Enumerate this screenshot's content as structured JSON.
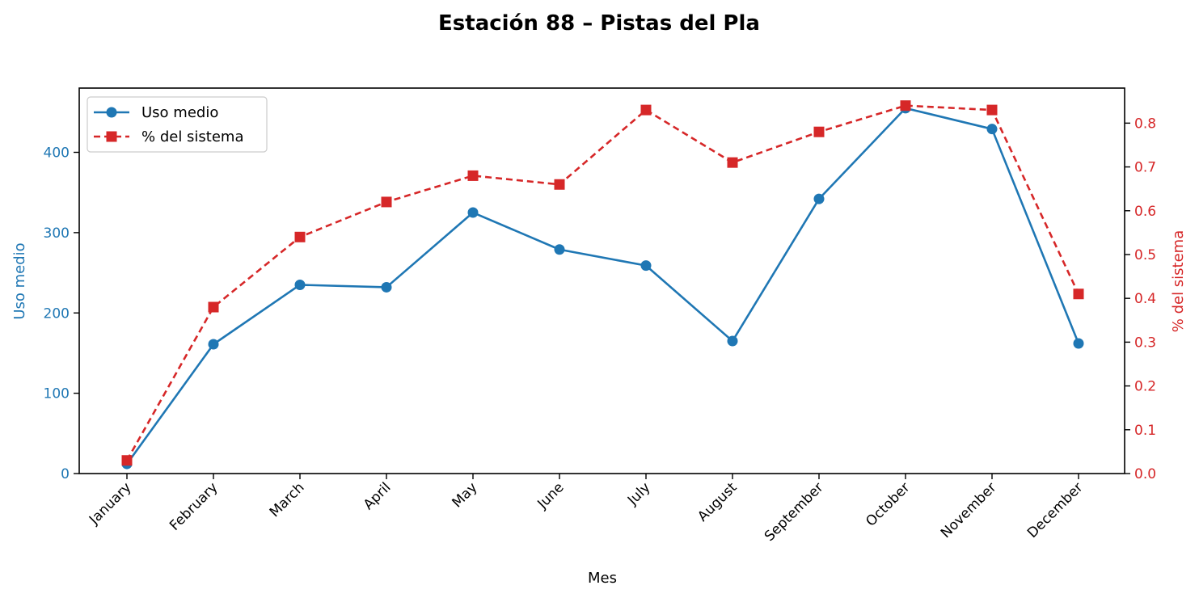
{
  "chart_data": {
    "type": "line",
    "title": "Estación 88 – Pistas del Pla",
    "xlabel": "Mes",
    "ylabel_left": "Uso medio",
    "ylabel_right": "% del sistema",
    "categories": [
      "January",
      "February",
      "March",
      "April",
      "May",
      "June",
      "July",
      "August",
      "September",
      "October",
      "November",
      "December"
    ],
    "y_left": {
      "lim": [
        0,
        480
      ],
      "ticks": [
        0,
        100,
        200,
        300,
        400
      ],
      "tick_labels": [
        "0",
        "100",
        "200",
        "300",
        "400"
      ],
      "color": "#1f77b4"
    },
    "y_right": {
      "lim": [
        0,
        0.88
      ],
      "ticks": [
        0.0,
        0.1,
        0.2,
        0.3,
        0.4,
        0.5,
        0.6,
        0.7,
        0.8
      ],
      "tick_labels": [
        "0.0",
        "0.1",
        "0.2",
        "0.3",
        "0.4",
        "0.5",
        "0.6",
        "0.7",
        "0.8"
      ],
      "color": "#d62728"
    },
    "series": [
      {
        "name": "Uso medio",
        "axis": "left",
        "color": "#1f77b4",
        "line_style": "solid",
        "marker": "circle",
        "values": [
          12,
          161,
          235,
          232,
          325,
          279,
          259,
          165,
          342,
          455,
          429,
          162
        ]
      },
      {
        "name": "% del sistema",
        "axis": "right",
        "color": "#d62728",
        "line_style": "dashed",
        "marker": "square",
        "values": [
          0.03,
          0.38,
          0.54,
          0.62,
          0.68,
          0.66,
          0.83,
          0.71,
          0.78,
          0.84,
          0.83,
          0.41
        ]
      }
    ],
    "legend_position": "top-left",
    "grid": false
  }
}
